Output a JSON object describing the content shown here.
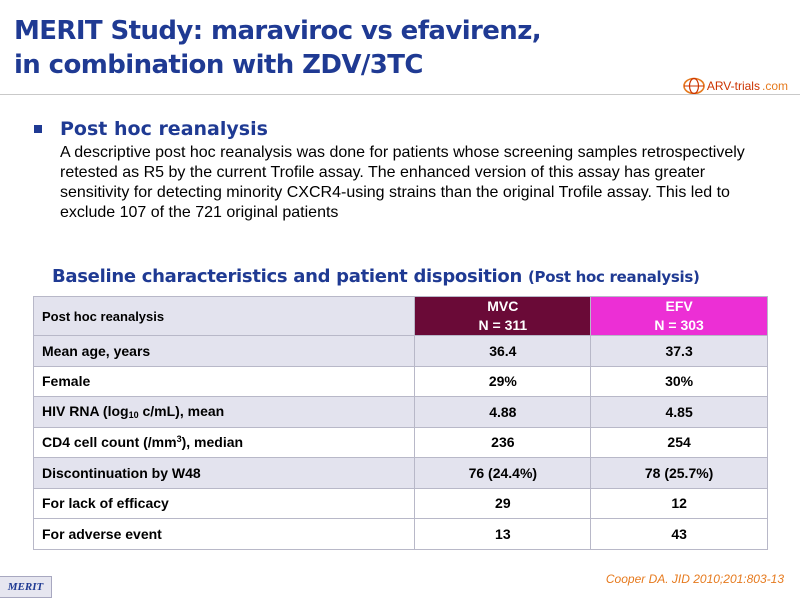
{
  "title": {
    "line1": "MERIT Study: maraviroc vs efavirenz,",
    "line2": "in combination with ZDV/3TC"
  },
  "logo": {
    "prefix": "ARV-trials",
    "suffix": ".com"
  },
  "bullet": {
    "heading": "Post hoc reanalysis",
    "body": "A descriptive post hoc reanalysis was done for patients whose screening samples retrospectively retested as R5 by the current Trofile assay. The enhanced version of this assay has greater sensitivity for detecting minority CXCR4-using strains than the original Trofile assay. This led to exclude 107 of the 721 original patients"
  },
  "section": {
    "title": "Baseline characteristics and patient disposition",
    "subtitle": "(Post hoc reanalysis)"
  },
  "table": {
    "header_label": "Post hoc reanalysis",
    "mvc": {
      "name": "MVC",
      "n": "N = 311"
    },
    "efv": {
      "name": "EFV",
      "n": "N = 303"
    },
    "rows": [
      {
        "label": "Mean age, years",
        "mvc": "36.4",
        "efv": "37.3"
      },
      {
        "label": "Female",
        "mvc": "29%",
        "efv": "30%"
      },
      {
        "label_prefix": "HIV RNA (log",
        "label_sub": "10",
        "label_suffix": " c/mL), mean",
        "mvc": "4.88",
        "efv": "4.85"
      },
      {
        "label_prefix": "CD4 cell count (/mm",
        "label_sup": "3",
        "label_suffix": "), median",
        "mvc": "236",
        "efv": "254"
      },
      {
        "label": "Discontinuation by W48",
        "mvc": "76 (24.4%)",
        "efv": "78 (25.7%)"
      },
      {
        "label": "For lack of efficacy",
        "mvc": "29",
        "efv": "12"
      },
      {
        "label": "For adverse event",
        "mvc": "13",
        "efv": "43"
      }
    ]
  },
  "footer": {
    "tag": "MERIT",
    "citation": "Cooper DA. JID 2010;201:803-13"
  },
  "colors": {
    "title": "#1f3a93",
    "mvc_header": "#6a0a37",
    "efv_header": "#ec2fd5",
    "row_shade": "#e3e3ee",
    "citation": "#e67a1e"
  }
}
